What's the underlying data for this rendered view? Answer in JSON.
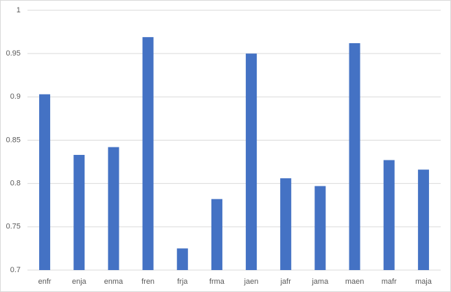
{
  "chart_data": {
    "type": "bar",
    "categories": [
      "enfr",
      "enja",
      "enma",
      "fren",
      "frja",
      "frma",
      "jaen",
      "jafr",
      "jama",
      "maen",
      "mafr",
      "maja"
    ],
    "values": [
      0.903,
      0.833,
      0.842,
      0.969,
      0.725,
      0.782,
      0.95,
      0.806,
      0.797,
      0.962,
      0.827,
      0.816
    ],
    "color": "#4472c4",
    "ylim": [
      0.7,
      1
    ],
    "yticks": [
      0.7,
      0.75,
      0.8,
      0.85,
      0.9,
      0.95,
      1
    ],
    "grid": true
  }
}
